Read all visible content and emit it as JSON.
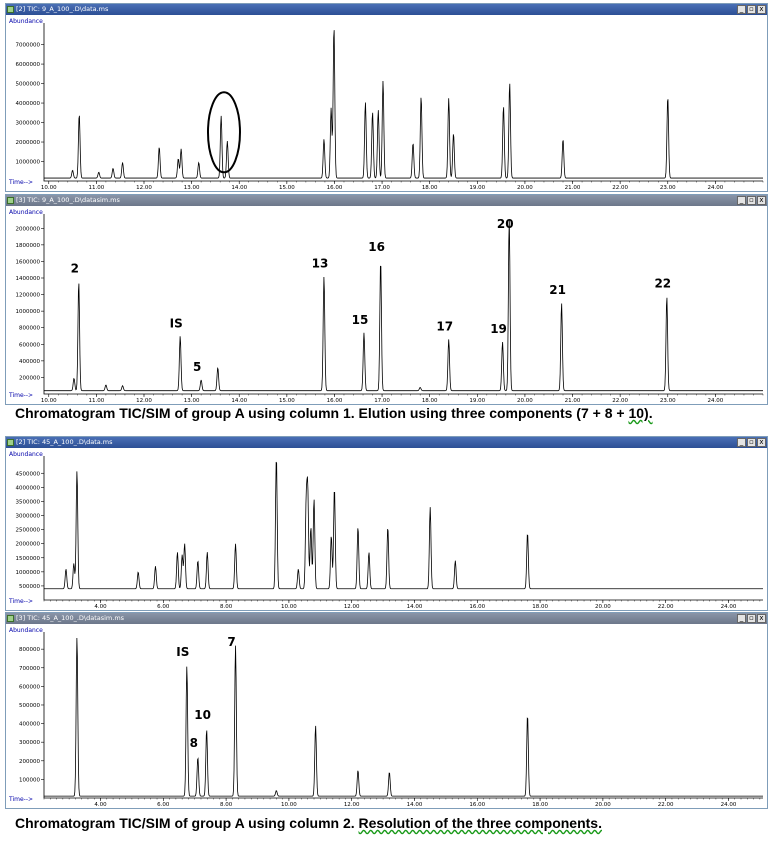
{
  "figure_1": {
    "caption_main": "Chromatogram TIC/SIM of group A using column 1. Elution using three components (7 + 8 + ",
    "caption_end": "10).",
    "panels": [
      {
        "title": "[2] TIC: 9_A_100_.D\\data.ms",
        "active": true
      },
      {
        "title": "[3] TIC: 9_A_100_.D\\datasim.ms",
        "active": false
      }
    ]
  },
  "figure_2": {
    "caption_main": "Chromatogram TIC/SIM of group A using column 2. ",
    "caption_end": "Resolution of the three components.",
    "panels": [
      {
        "title": "[2] TIC: 45_A_100_.D\\data.ms",
        "active": true
      },
      {
        "title": "[3] TIC: 45_A_100_.D\\datasim.ms",
        "active": false
      }
    ]
  },
  "window_buttons": [
    "minimize-icon",
    "restore-icon",
    "close-icon"
  ],
  "colors": {
    "trace": "#000000",
    "titlebar": "#3a5ea6",
    "titlebar_inactive": "#7a8598",
    "highlight_ellipse": "#000000"
  },
  "chart_data": [
    {
      "type": "line",
      "title": "",
      "ylabel": "Abundance",
      "xlabel": "Time-->",
      "xlim": [
        9.9,
        25.0
      ],
      "ylim": [
        0,
        7800000
      ],
      "xticks": [
        "10.00",
        "11.00",
        "12.00",
        "13.00",
        "14.00",
        "15.00",
        "16.00",
        "17.00",
        "18.00",
        "19.00",
        "20.00",
        "21.00",
        "22.00",
        "23.00",
        "24.00"
      ],
      "yticks": [
        "1000000",
        "2000000",
        "3000000",
        "4000000",
        "5000000",
        "6000000",
        "7000000"
      ],
      "baseline": 150000,
      "peaks": [
        [
          10.5,
          400000
        ],
        [
          10.64,
          3300000
        ],
        [
          11.05,
          300000
        ],
        [
          11.35,
          500000
        ],
        [
          11.55,
          800000
        ],
        [
          12.32,
          1600000
        ],
        [
          12.72,
          1000000
        ],
        [
          12.78,
          1500000
        ],
        [
          13.15,
          800000
        ],
        [
          13.62,
          3200000
        ],
        [
          13.75,
          1900000
        ],
        [
          15.78,
          2000000
        ],
        [
          15.93,
          3600000
        ],
        [
          15.99,
          7800000
        ],
        [
          16.65,
          3900000
        ],
        [
          16.8,
          3400000
        ],
        [
          16.92,
          3500000
        ],
        [
          17.02,
          5000000
        ],
        [
          17.65,
          1800000
        ],
        [
          17.82,
          4200000
        ],
        [
          18.4,
          4100000
        ],
        [
          18.5,
          2300000
        ],
        [
          19.55,
          3700000
        ],
        [
          19.68,
          4900000
        ],
        [
          20.8,
          2000000
        ],
        [
          23.0,
          4200000
        ]
      ],
      "annotations": [
        {
          "shape": "ellipse",
          "x_center": 13.68,
          "y_center": 2500000,
          "label": "circled peaks"
        }
      ]
    },
    {
      "type": "line",
      "title": "",
      "ylabel": "Abundance",
      "xlabel": "Time-->",
      "xlim": [
        9.9,
        25.0
      ],
      "ylim": [
        0,
        2100000
      ],
      "xticks": [
        "10.00",
        "11.00",
        "12.00",
        "13.00",
        "14.00",
        "15.00",
        "16.00",
        "17.00",
        "18.00",
        "19.00",
        "20.00",
        "21.00",
        "22.00",
        "23.00",
        "24.00"
      ],
      "yticks": [
        "200000",
        "400000",
        "600000",
        "800000",
        "1000000",
        "1200000",
        "1400000",
        "1600000",
        "1800000",
        "2000000"
      ],
      "baseline": 40000,
      "peaks": [
        [
          10.53,
          150000
        ],
        [
          10.63,
          1320000
        ],
        [
          11.2,
          70000
        ],
        [
          11.55,
          60000
        ],
        [
          12.76,
          660000
        ],
        [
          13.2,
          130000
        ],
        [
          13.55,
          280000
        ],
        [
          15.78,
          1380000
        ],
        [
          16.62,
          700000
        ],
        [
          16.97,
          1580000
        ],
        [
          17.8,
          40000
        ],
        [
          18.4,
          620000
        ],
        [
          19.53,
          590000
        ],
        [
          19.67,
          2080000
        ],
        [
          20.77,
          1060000
        ],
        [
          22.98,
          1140000
        ]
      ],
      "peak_labels": [
        {
          "text": "2",
          "x": 10.63,
          "y": 1320000
        },
        {
          "text": "IS",
          "x": 12.76,
          "y": 660000
        },
        {
          "text": "5",
          "x": 13.2,
          "y": 130000
        },
        {
          "text": "13",
          "x": 15.78,
          "y": 1380000
        },
        {
          "text": "15",
          "x": 16.62,
          "y": 700000
        },
        {
          "text": "16",
          "x": 16.97,
          "y": 1580000
        },
        {
          "text": "17",
          "x": 18.4,
          "y": 620000
        },
        {
          "text": "19",
          "x": 19.53,
          "y": 590000
        },
        {
          "text": "20",
          "x": 19.67,
          "y": 2080000
        },
        {
          "text": "21",
          "x": 20.77,
          "y": 1060000
        },
        {
          "text": "22",
          "x": 22.98,
          "y": 1140000
        }
      ]
    },
    {
      "type": "line",
      "title": "",
      "ylabel": "Abundance",
      "xlabel": "Time-->",
      "xlim": [
        2.2,
        25.1
      ],
      "ylim": [
        0,
        4900000
      ],
      "xticks": [
        "4.00",
        "6.00",
        "8.00",
        "10.00",
        "12.00",
        "14.00",
        "16.00",
        "18.00",
        "20.00",
        "22.00",
        "24.00"
      ],
      "yticks": [
        "500000",
        "1000000",
        "1500000",
        "2000000",
        "2500000",
        "3000000",
        "3500000",
        "4000000",
        "4500000"
      ],
      "baseline": 400000,
      "peaks": [
        [
          2.9,
          700000
        ],
        [
          3.15,
          900000
        ],
        [
          3.25,
          4200000
        ],
        [
          5.2,
          600000
        ],
        [
          5.75,
          800000
        ],
        [
          6.45,
          1300000
        ],
        [
          6.6,
          1200000
        ],
        [
          6.68,
          1600000
        ],
        [
          7.1,
          1000000
        ],
        [
          7.4,
          1300000
        ],
        [
          8.3,
          1600000
        ],
        [
          9.6,
          4800000
        ],
        [
          10.3,
          700000
        ],
        [
          10.55,
          2900000
        ],
        [
          10.6,
          3400000
        ],
        [
          10.7,
          2200000
        ],
        [
          10.8,
          3200000
        ],
        [
          11.35,
          1900000
        ],
        [
          11.45,
          3600000
        ],
        [
          12.2,
          2200000
        ],
        [
          12.55,
          1300000
        ],
        [
          13.15,
          2200000
        ],
        [
          14.5,
          2900000
        ],
        [
          15.3,
          1000000
        ],
        [
          17.6,
          2000000
        ]
      ]
    },
    {
      "type": "line",
      "title": "",
      "ylabel": "Abundance",
      "xlabel": "Time-->",
      "xlim": [
        2.2,
        25.1
      ],
      "ylim": [
        0,
        860000
      ],
      "xticks": [
        "4.00",
        "6.00",
        "8.00",
        "10.00",
        "12.00",
        "14.00",
        "16.00",
        "18.00",
        "20.00",
        "22.00",
        "24.00"
      ],
      "yticks": [
        "100000",
        "200000",
        "300000",
        "400000",
        "500000",
        "600000",
        "700000",
        "800000"
      ],
      "baseline": 10000,
      "peaks": [
        [
          3.25,
          860000
        ],
        [
          6.75,
          700000
        ],
        [
          7.1,
          210000
        ],
        [
          7.38,
          360000
        ],
        [
          8.3,
          810000
        ],
        [
          9.6,
          30000
        ],
        [
          10.85,
          380000
        ],
        [
          12.2,
          140000
        ],
        [
          13.2,
          130000
        ],
        [
          17.6,
          440000
        ]
      ],
      "peak_labels": [
        {
          "text": "IS",
          "x": 6.75,
          "y": 700000
        },
        {
          "text": "8",
          "x": 7.1,
          "y": 210000
        },
        {
          "text": "10",
          "x": 7.38,
          "y": 360000
        },
        {
          "text": "7",
          "x": 8.3,
          "y": 810000
        }
      ]
    }
  ]
}
